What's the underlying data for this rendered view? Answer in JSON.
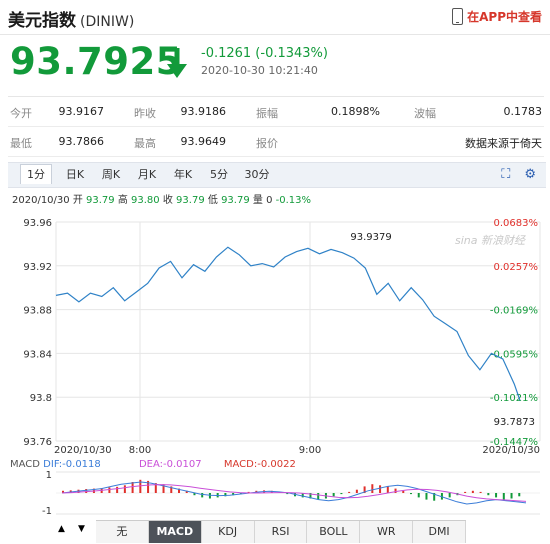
{
  "header": {
    "title": "美元指数",
    "code": "(DINIW)",
    "app_link": "在APP中查看"
  },
  "quote": {
    "price": "93.7925",
    "change": "-0.1261 (-0.1343%)",
    "datetime": "2020-10-30 10:21:40"
  },
  "stats": {
    "row1": [
      {
        "label": "今开",
        "value": "93.9167"
      },
      {
        "label": "昨收",
        "value": "93.9186"
      },
      {
        "label": "振幅",
        "value": "0.1898%"
      },
      {
        "label": "波幅",
        "value": "0.1783"
      }
    ],
    "row2": [
      {
        "label": "最低",
        "value": "93.7866"
      },
      {
        "label": "最高",
        "value": "93.9649"
      },
      {
        "label": "报价",
        "value": ""
      },
      {
        "label": "",
        "value": "数据来源于倚天"
      }
    ]
  },
  "tabs": [
    "1分",
    "日K",
    "周K",
    "月K",
    "年K",
    "5分",
    "30分"
  ],
  "active_tab": "1分",
  "toolbar_icons": [
    "expand-icon",
    "settings-gear-icon"
  ],
  "infoline": {
    "date": "2020/10/30",
    "open_label": "开",
    "open": "93.79",
    "high_label": "高",
    "high": "93.80",
    "close_label": "收",
    "close": "93.79",
    "low_label": "低",
    "low": "93.79",
    "vol_label": "量",
    "vol": "0",
    "pct": "-0.13%"
  },
  "watermark": "sina 新浪财经",
  "chart_data": {
    "type": "line",
    "ylim": [
      93.76,
      93.96
    ],
    "y_ticks": [
      "93.96",
      "93.92",
      "93.88",
      "93.84",
      "93.8",
      "93.76"
    ],
    "right_ticks": [
      {
        "label": "0.0683%",
        "color": "#e0302b"
      },
      {
        "label": "0.0257%",
        "color": "#e0302b"
      },
      {
        "label": "-0.0169%",
        "color": "#129a3a"
      },
      {
        "label": "-0.0595%",
        "color": "#129a3a"
      },
      {
        "label": "-0.1021%",
        "color": "#129a3a"
      },
      {
        "label": "-0.1447%",
        "color": "#129a3a"
      }
    ],
    "x_ticks": [
      "2020/10/30",
      "8:00",
      "9:00",
      "2020/10/30"
    ],
    "annotations": [
      {
        "label": "93.9379",
        "x": 110,
        "y": 93.9379
      },
      {
        "label": "93.7873",
        "x": 160,
        "y": 93.7873
      }
    ],
    "x": [
      0,
      4,
      8,
      12,
      16,
      20,
      24,
      28,
      32,
      36,
      40,
      44,
      48,
      52,
      56,
      60,
      64,
      68,
      72,
      76,
      80,
      84,
      88,
      92,
      96,
      100,
      104,
      108,
      112,
      116,
      120,
      124,
      128,
      132,
      136,
      140,
      144,
      148,
      152,
      156,
      160,
      162
    ],
    "values": [
      93.893,
      93.895,
      93.887,
      93.895,
      93.892,
      93.9,
      93.888,
      93.896,
      93.904,
      93.918,
      93.924,
      93.909,
      93.921,
      93.915,
      93.928,
      93.937,
      93.93,
      93.92,
      93.922,
      93.919,
      93.928,
      93.933,
      93.936,
      93.931,
      93.935,
      93.932,
      93.927,
      93.918,
      93.894,
      93.904,
      93.888,
      93.9,
      93.889,
      93.874,
      93.867,
      93.86,
      93.838,
      93.825,
      93.84,
      93.835,
      93.812,
      93.797
    ],
    "grid": true,
    "color": "#2f82c7"
  },
  "macd": {
    "dif_label": "DIF:",
    "dif": "-0.0118",
    "dea_label": "DEA:",
    "dea": "-0.0107",
    "macd_label": "MACD:",
    "macd": "-0.0022",
    "y_ticks": [
      "1",
      "-1"
    ],
    "histogram": [
      0.1,
      0.12,
      0.15,
      0.18,
      0.2,
      0.22,
      0.25,
      0.28,
      0.35,
      0.5,
      0.6,
      0.55,
      0.45,
      0.4,
      0.3,
      0.2,
      0.1,
      -0.1,
      -0.2,
      -0.25,
      -0.2,
      -0.15,
      -0.1,
      -0.05,
      0.05,
      0.1,
      0.12,
      0.1,
      0.05,
      -0.05,
      -0.15,
      -0.2,
      -0.25,
      -0.3,
      -0.25,
      -0.15,
      -0.05,
      0.05,
      0.15,
      0.3,
      0.4,
      0.35,
      0.3,
      0.2,
      0.1,
      -0.05,
      -0.2,
      -0.3,
      -0.35,
      -0.3,
      -0.2,
      -0.1,
      0.05,
      0.1,
      0.05,
      -0.1,
      -0.2,
      -0.3,
      -0.25,
      -0.15
    ],
    "dif_line": [
      0.0,
      0.05,
      0.1,
      0.15,
      0.2,
      0.3,
      0.4,
      0.45,
      0.5,
      0.45,
      0.35,
      0.25,
      0.15,
      0.05,
      -0.05,
      -0.1,
      -0.12,
      -0.1,
      -0.05,
      0.0,
      0.05,
      0.08,
      0.05,
      0.0,
      -0.1,
      -0.2,
      -0.3,
      -0.35,
      -0.3,
      -0.2,
      -0.05,
      0.1,
      0.2,
      0.3,
      0.35,
      0.3,
      0.2,
      0.05,
      -0.1,
      -0.25,
      -0.4,
      -0.5,
      -0.45,
      -0.35,
      -0.3,
      -0.35,
      -0.4,
      -0.45
    ],
    "dea_line": [
      0.0,
      0.02,
      0.05,
      0.08,
      0.12,
      0.17,
      0.22,
      0.28,
      0.33,
      0.37,
      0.38,
      0.37,
      0.33,
      0.28,
      0.22,
      0.16,
      0.1,
      0.05,
      0.02,
      0.0,
      0.0,
      0.01,
      0.02,
      0.02,
      0.0,
      -0.04,
      -0.09,
      -0.15,
      -0.2,
      -0.22,
      -0.2,
      -0.15,
      -0.08,
      0.0,
      0.08,
      0.14,
      0.17,
      0.16,
      0.12,
      0.05,
      -0.04,
      -0.14,
      -0.22,
      -0.27,
      -0.3,
      -0.32,
      -0.35,
      -0.38
    ]
  },
  "indicators": [
    "无",
    "MACD",
    "KDJ",
    "RSI",
    "BOLL",
    "WR",
    "DMI"
  ],
  "active_indicator": "MACD",
  "nav": {
    "up": "▲",
    "down": "▼"
  }
}
